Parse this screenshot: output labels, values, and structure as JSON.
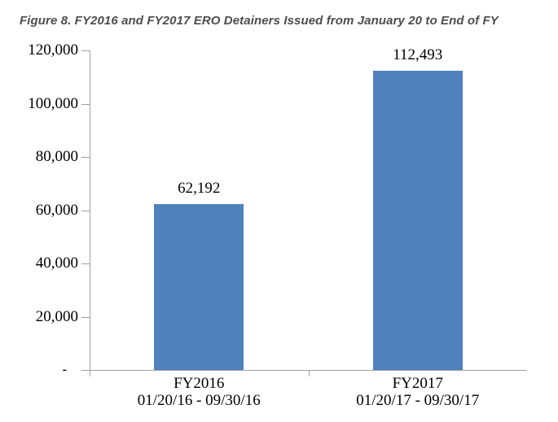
{
  "colors": {
    "bar": "#4F81BD",
    "axis": "#A0A0A0",
    "title_text": "#4D4D4D",
    "label_text": "#000000",
    "background": "#FFFFFF"
  },
  "chart_data": {
    "type": "bar",
    "title": "Figure 8. FY2016 and FY2017 ERO Detainers Issued from January 20 to End of FY",
    "categories": [
      "FY2016",
      "FY2017"
    ],
    "category_sublabels": [
      "01/20/16 - 09/30/16",
      "01/20/17 - 09/30/17"
    ],
    "values": [
      62192,
      112493
    ],
    "value_labels": [
      "62,192",
      "112,493"
    ],
    "ytick_values": [
      120000,
      100000,
      80000,
      60000,
      40000,
      20000,
      0
    ],
    "ytick_labels": [
      "120,000",
      "100,000",
      "80,000",
      "60,000",
      "40,000",
      "20,000",
      "-"
    ],
    "ylim": [
      0,
      120000
    ],
    "xlabel": "",
    "ylabel": "",
    "grid": false,
    "legend": null,
    "bar_color": "#4F81BD"
  }
}
